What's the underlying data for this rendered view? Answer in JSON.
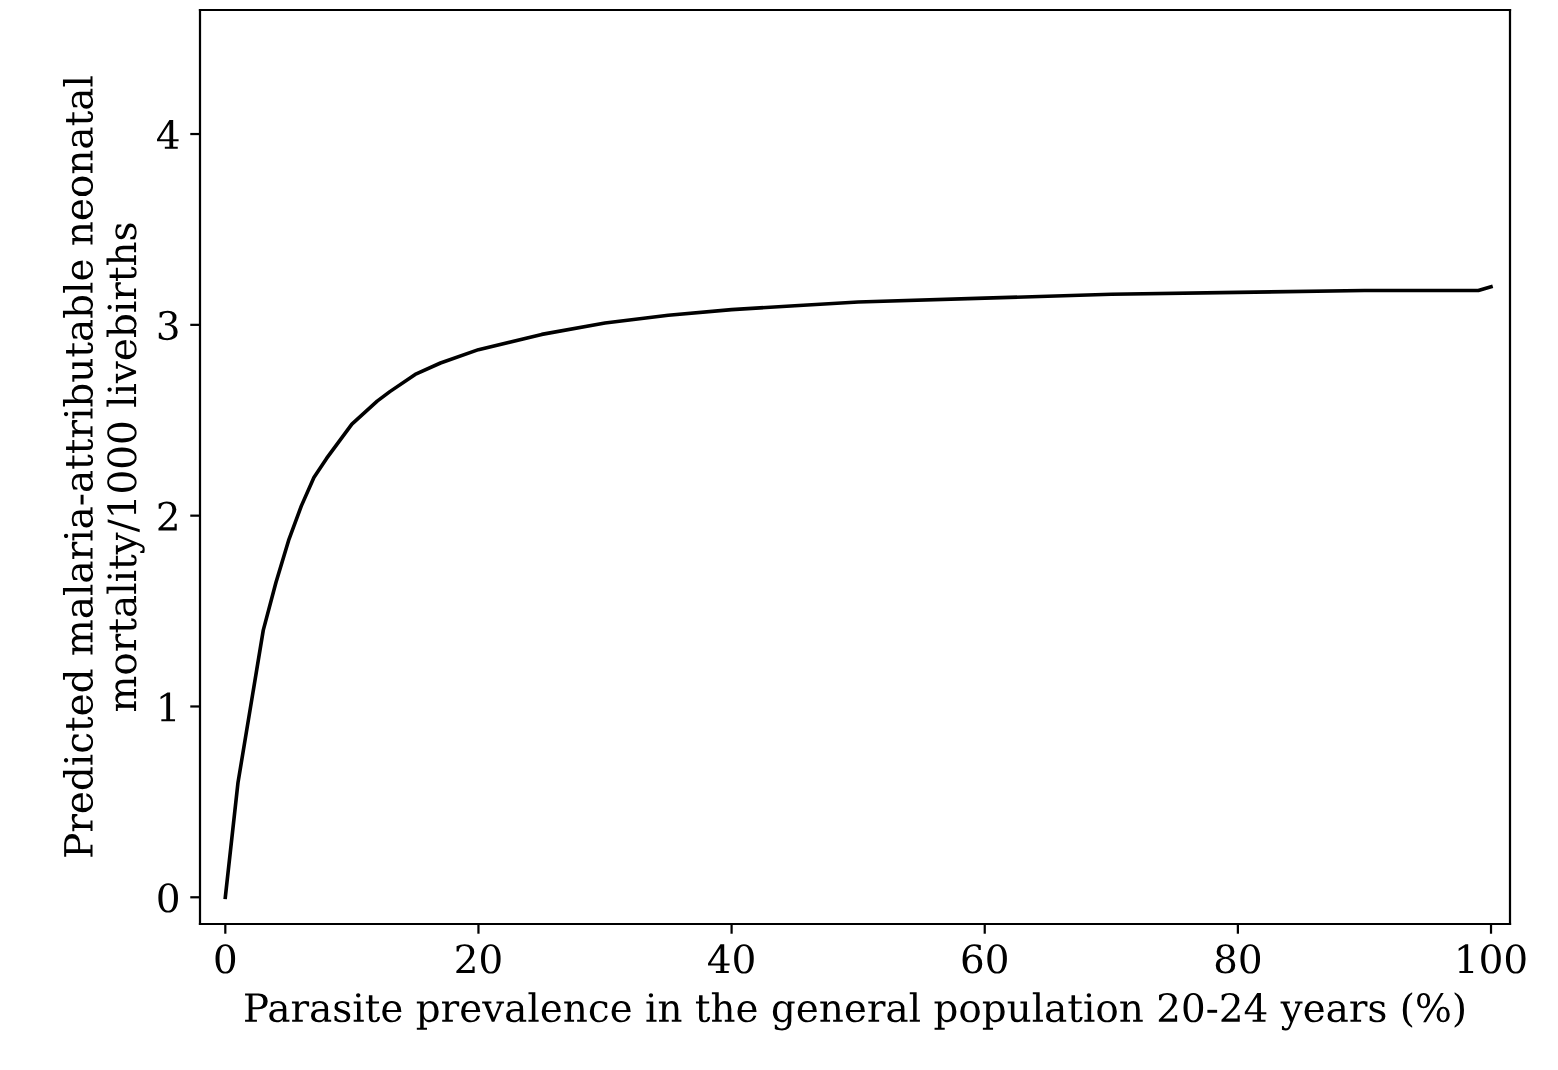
{
  "chart_data": {
    "type": "line",
    "xlabel": "Parasite prevalence in the general population 20-24 years (%)",
    "ylabel": "Predicted malaria-attributable neonatal\nmortality/1000 livebirths",
    "x": [
      0,
      1,
      2,
      3,
      4,
      5,
      6,
      7,
      8,
      10,
      12,
      13,
      15,
      17,
      20,
      25,
      30,
      35,
      40,
      45,
      50,
      60,
      70,
      80,
      90,
      99,
      100
    ],
    "series": [
      {
        "color": "#000000",
        "values": [
          0,
          0.6,
          1.0,
          1.4,
          1.65,
          1.87,
          2.05,
          2.2,
          2.3,
          2.48,
          2.6,
          2.65,
          2.74,
          2.8,
          2.87,
          2.95,
          3.01,
          3.05,
          3.08,
          3.1,
          3.12,
          3.14,
          3.16,
          3.17,
          3.18,
          3.18,
          3.2
        ]
      }
    ],
    "xlim": [
      -2,
      101.5
    ],
    "ylim": [
      -0.14,
      4.65
    ],
    "xticks": [
      0,
      20,
      40,
      60,
      80,
      100
    ],
    "yticks": [
      0,
      1,
      2,
      3,
      4
    ],
    "grid": false,
    "legend": false,
    "marker": "none",
    "line_style": "solid"
  }
}
